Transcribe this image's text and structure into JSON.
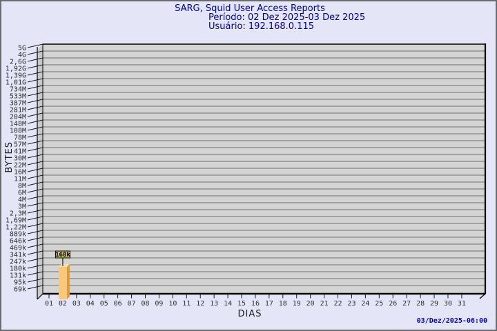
{
  "header": {
    "title": "SARG, Squid User Access Reports",
    "period": "Período: 02 Dez 2025-03 Dez 2025",
    "user": "Usuário: 192.168.0.115"
  },
  "footer": {
    "timestamp": "03/Dez/2025-06:00"
  },
  "chart_data": {
    "type": "bar",
    "style": "3d",
    "scale": "log",
    "title": "SARG, Squid User Access Reports",
    "subtitle_period": "Período: 02 Dez 2025-03 Dez 2025",
    "subtitle_user": "Usuário: 192.168.0.115",
    "xlabel": "DIAS",
    "ylabel": "BYTES",
    "legend_position": "none",
    "grid": "on",
    "categories": [
      "01",
      "02",
      "03",
      "04",
      "05",
      "06",
      "07",
      "08",
      "09",
      "10",
      "11",
      "12",
      "13",
      "14",
      "15",
      "16",
      "17",
      "18",
      "19",
      "20",
      "21",
      "22",
      "23",
      "24",
      "25",
      "26",
      "27",
      "28",
      "29",
      "30",
      "31"
    ],
    "values": [
      0,
      168000,
      0,
      0,
      0,
      0,
      0,
      0,
      0,
      0,
      0,
      0,
      0,
      0,
      0,
      0,
      0,
      0,
      0,
      0,
      0,
      0,
      0,
      0,
      0,
      0,
      0,
      0,
      0,
      0,
      0
    ],
    "bars": [
      {
        "day": "02",
        "value_bytes": 168000,
        "value_label": "168k"
      }
    ],
    "y_tick_labels": [
      "5G",
      "4G",
      "2,6G",
      "1,92G",
      "1,39G",
      "1,01G",
      "734M",
      "533M",
      "387M",
      "281M",
      "204M",
      "148M",
      "108M",
      "78M",
      "57M",
      "41M",
      "30M",
      "22M",
      "16M",
      "11M",
      "8M",
      "6M",
      "4M",
      "3M",
      "2,3M",
      "1,69M",
      "1,22M",
      "889k",
      "646k",
      "469k",
      "341k",
      "247k",
      "180k",
      "131k",
      "95k",
      "69k"
    ],
    "ylim_labels": [
      "69k",
      "5G"
    ]
  },
  "colors": {
    "background": "#e4e5f6",
    "title_text": "#00009c",
    "timestamp_text": "#0000c8",
    "plot_fill": "#d4d4d4",
    "wall_fill": "#c9c9c9",
    "gridline": "#6e6e6e",
    "frame": "#000000",
    "tick_text": "#2b2b2b",
    "bar_front": "#fac878",
    "bar_side": "#dc9a40",
    "bar_top": "#fde1a0",
    "callout_fill": "#c9bf62",
    "callout_border": "#000000"
  }
}
